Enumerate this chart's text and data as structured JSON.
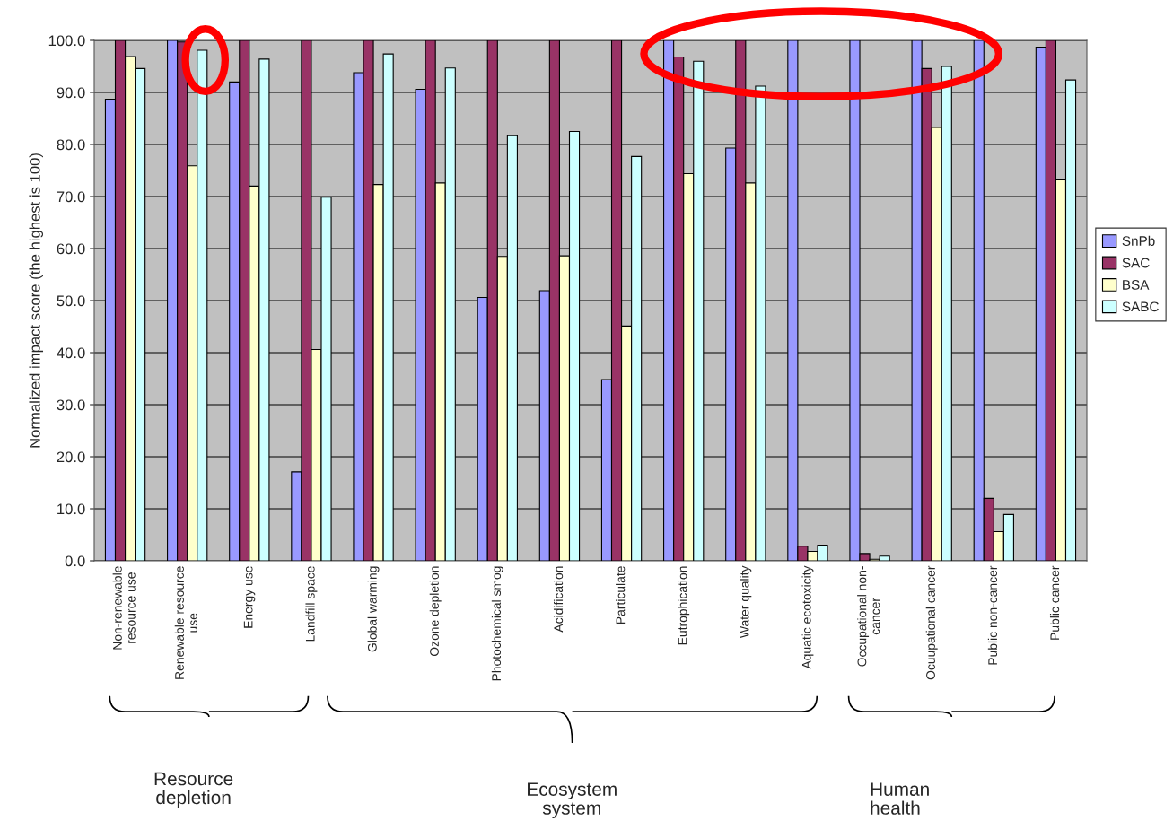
{
  "chart_data": {
    "type": "bar",
    "ylabel": "Normalized impact score (the highest is 100)",
    "categories": [
      "Non-renewable\nresource use",
      "Renewable resource\nuse",
      "Energy use",
      "Landfill space",
      "Global warming",
      "Ozone depletion",
      "Photochemical smog",
      "Acidification",
      "Particulate",
      "Eutrophication",
      "Water quality",
      "Aquatic ecotoxicity",
      "Occupational non-\ncancer",
      "Ocuupational cancer",
      "Public non-cancer",
      "Public cancer"
    ],
    "series": [
      {
        "name": "SnPb",
        "color": "#9999ff",
        "values": [
          88.7,
          100,
          92.0,
          17.1,
          93.8,
          90.6,
          50.6,
          51.9,
          34.8,
          100,
          79.3,
          100,
          100,
          100,
          100,
          98.7
        ]
      },
      {
        "name": "SAC",
        "color": "#993366",
        "values": [
          100,
          99.7,
          100,
          100,
          100,
          100,
          100,
          100,
          100,
          96.8,
          100,
          2.8,
          1.4,
          94.6,
          12.0,
          100
        ]
      },
      {
        "name": "BSA",
        "color": "#ffffcc",
        "values": [
          96.9,
          75.9,
          72.0,
          40.6,
          72.3,
          72.6,
          58.5,
          58.6,
          45.1,
          74.4,
          72.6,
          1.8,
          0.3,
          83.3,
          5.6,
          73.2
        ]
      },
      {
        "name": "SABC",
        "color": "#ccffff",
        "values": [
          94.6,
          98.1,
          96.4,
          69.9,
          97.4,
          94.7,
          81.7,
          82.5,
          77.7,
          96.0,
          91.2,
          3.0,
          0.9,
          95.0,
          8.9,
          92.4
        ]
      }
    ],
    "ylim": [
      0,
      100
    ],
    "yticks": [
      {
        "value": 0,
        "label": "0.0"
      },
      {
        "value": 10,
        "label": "10.0"
      },
      {
        "value": 20,
        "label": "20.0"
      },
      {
        "value": 30,
        "label": "30.0"
      },
      {
        "value": 40,
        "label": "40.0"
      },
      {
        "value": 50,
        "label": "50.0"
      },
      {
        "value": 60,
        "label": "60.0"
      },
      {
        "value": 70,
        "label": "70.0"
      },
      {
        "value": 80,
        "label": "80.0"
      },
      {
        "value": 90,
        "label": "90.0"
      },
      {
        "value": 100,
        "label": "100.0"
      }
    ],
    "grid": "y",
    "legend": "right",
    "annotations": [
      "Resource\ndepletion",
      "Ecosystem\nsystem",
      "Human\nhealth"
    ]
  }
}
